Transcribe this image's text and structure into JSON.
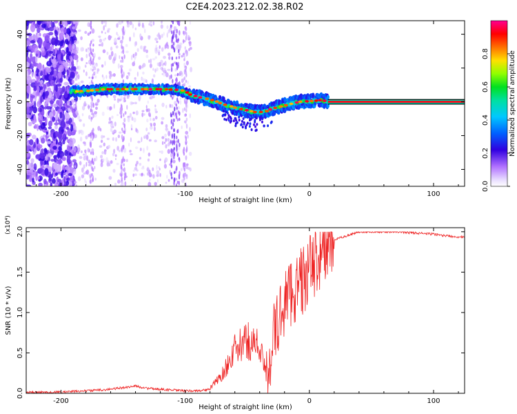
{
  "figure": {
    "title": "C2E4.2023.212.02.38.R02"
  },
  "chart_data": [
    {
      "type": "heatmap",
      "xlabel": "Height of straight line (km)",
      "ylabel": "Frequency (Hz)",
      "xlim": [
        -228,
        125
      ],
      "ylim": [
        -50,
        48
      ],
      "x_ticks": [
        -200,
        -100,
        0,
        100
      ],
      "y_ticks": [
        -40,
        -20,
        0,
        20,
        40
      ],
      "grid": false,
      "colorbar": {
        "label": "Normalized spectral amplitude",
        "range": [
          0,
          1
        ],
        "ticks": [
          "0.0",
          "0.2",
          "0.4",
          "0.6",
          "0.8"
        ],
        "colormap": "rainbow (white-purple-blue-cyan-green-yellow-red-magenta)",
        "colors": [
          "#ffffff",
          "#b388ff",
          "#5a00e0",
          "#0018ff",
          "#00c8ff",
          "#00e060",
          "#80ff00",
          "#ffe000",
          "#ff6000",
          "#ff0010",
          "#ff0090"
        ]
      },
      "ridge_center_hz": [
        [
          -192,
          6
        ],
        [
          -180,
          6.5
        ],
        [
          -165,
          7.5
        ],
        [
          -150,
          7.5
        ],
        [
          -135,
          7.5
        ],
        [
          -120,
          7.5
        ],
        [
          -105,
          7
        ],
        [
          -95,
          4
        ],
        [
          -85,
          2
        ],
        [
          -75,
          0
        ],
        [
          -65,
          -2.5
        ],
        [
          -55,
          -4.5
        ],
        [
          -45,
          -6
        ],
        [
          -38,
          -6
        ],
        [
          -30,
          -4
        ],
        [
          -20,
          -2
        ],
        [
          -10,
          0
        ],
        [
          0,
          0.5
        ],
        [
          10,
          1
        ],
        [
          15,
          0
        ],
        [
          60,
          0
        ],
        [
          125,
          0
        ]
      ]
    },
    {
      "type": "line",
      "xlabel": "Height of straight line (km)",
      "ylabel": "SNR (10 * v/v)",
      "y_multiplier": "(x10⁴)",
      "xlim": [
        -228,
        125
      ],
      "ylim": [
        0,
        2.05
      ],
      "x_ticks": [
        -200,
        -100,
        0,
        100
      ],
      "y_ticks": [
        "0.0",
        "0.5",
        "1.0",
        "1.5",
        "2.0"
      ],
      "grid": false,
      "color": "#ee2222",
      "series": [
        {
          "x": [
            -228,
            -200,
            -180,
            -160,
            -150,
            -140,
            -130,
            -120,
            -110,
            -100,
            -90,
            -80,
            -70,
            -60,
            -50,
            -40,
            -35,
            -30,
            -25,
            -20,
            -15,
            -10,
            -5,
            0,
            5,
            10,
            20,
            30,
            40,
            50,
            60,
            70,
            80,
            90,
            100,
            110,
            125
          ],
          "values": [
            0.01,
            0.015,
            0.03,
            0.05,
            0.07,
            0.09,
            0.06,
            0.05,
            0.04,
            0.03,
            0.03,
            0.05,
            0.2,
            0.45,
            0.55,
            0.5,
            0.2,
            0.7,
            0.9,
            1.2,
            1.3,
            1.35,
            1.45,
            1.55,
            1.7,
            1.8,
            1.9,
            1.95,
            2.0,
            2.0,
            2.0,
            2.0,
            1.99,
            1.98,
            1.97,
            1.95,
            1.93
          ]
        }
      ]
    }
  ]
}
